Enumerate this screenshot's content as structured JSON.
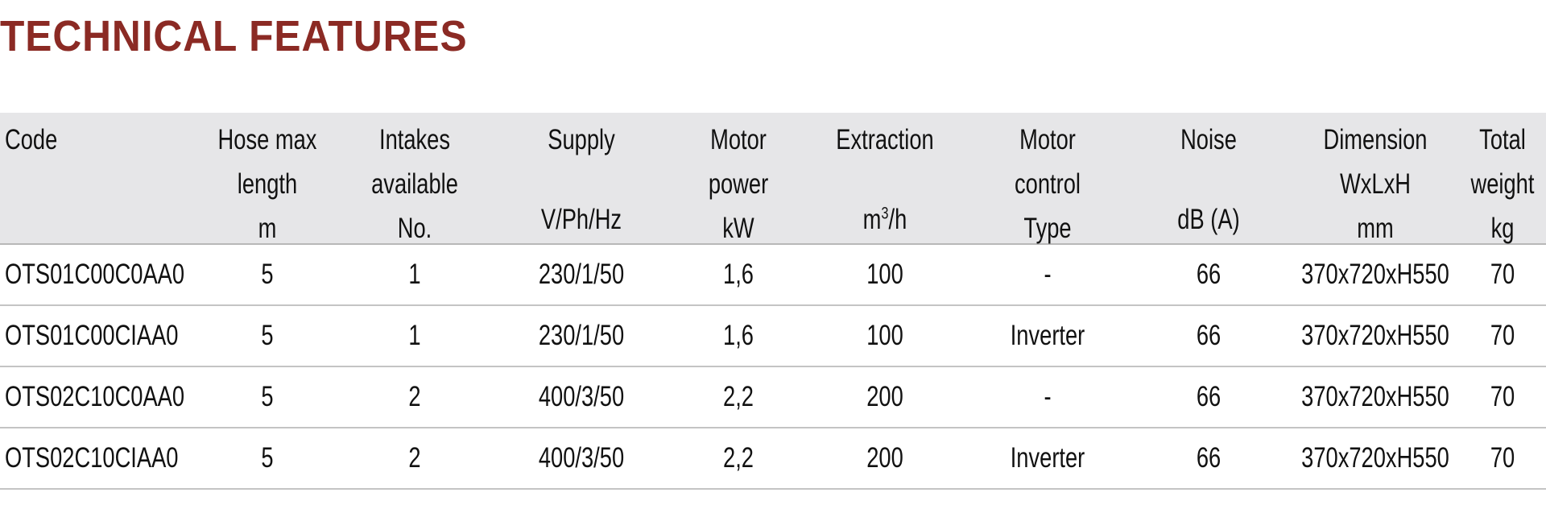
{
  "page": {
    "title": "TECHNICAL FEATURES",
    "title_color": "#8b2a24",
    "header_bg": "#e6e6e8"
  },
  "table": {
    "columns": [
      {
        "line1": "Code",
        "line2": "",
        "unit": ""
      },
      {
        "line1": "Hose max",
        "line2": "length",
        "unit": "m"
      },
      {
        "line1": "Intakes",
        "line2": "available",
        "unit": "No."
      },
      {
        "line1": "Supply",
        "line2": "",
        "unit": "V/Ph/Hz"
      },
      {
        "line1": "Motor",
        "line2": "power",
        "unit": "kW"
      },
      {
        "line1": "Extraction",
        "line2": "",
        "unit": "m",
        "unit_sup": "3",
        "unit_suffix": "/h"
      },
      {
        "line1": "Motor",
        "line2": "control",
        "unit": "Type"
      },
      {
        "line1": "Noise",
        "line2": "",
        "unit": "dB (A)"
      },
      {
        "line1": "Dimension",
        "line2": "WxLxH",
        "unit": "mm"
      },
      {
        "line1": "Total",
        "line2": "weight",
        "unit": "kg"
      }
    ],
    "rows": [
      [
        "OTS01C00C0AA0",
        "5",
        "1",
        "230/1/50",
        "1,6",
        "100",
        "-",
        "66",
        "370x720xH550",
        "70"
      ],
      [
        "OTS01C00CIAA0",
        "5",
        "1",
        "230/1/50",
        "1,6",
        "100",
        "Inverter",
        "66",
        "370x720xH550",
        "70"
      ],
      [
        "OTS02C10C0AA0",
        "5",
        "2",
        "400/3/50",
        "2,2",
        "200",
        "-",
        "66",
        "370x720xH550",
        "70"
      ],
      [
        "OTS02C10CIAA0",
        "5",
        "2",
        "400/3/50",
        "2,2",
        "200",
        "Inverter",
        "66",
        "370x720xH550",
        "70"
      ]
    ]
  }
}
